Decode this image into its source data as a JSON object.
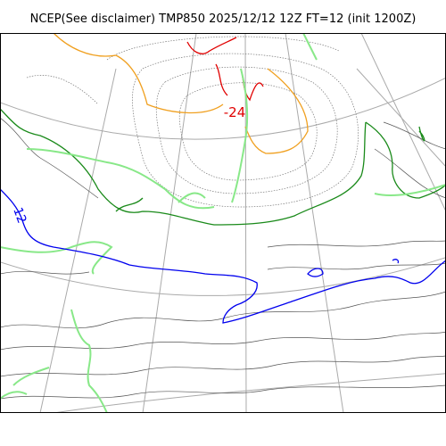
{
  "title": "NCEP(See disclaimer) TMP850 2025/12/12 12Z FT=12 (init 1200Z)",
  "contour_labels": [
    "-24",
    "12"
  ],
  "colors": {
    "grid": "#aaaaaa",
    "background_contour": "#555555",
    "dotted_contour": "#777777",
    "cold_minus24": "#e00000",
    "orange_contour": "#f0a020",
    "green_contour": "#1a8a1a",
    "light_green_contour": "#88e888",
    "blue_contour": "#0000ee",
    "frame": "#000000"
  }
}
